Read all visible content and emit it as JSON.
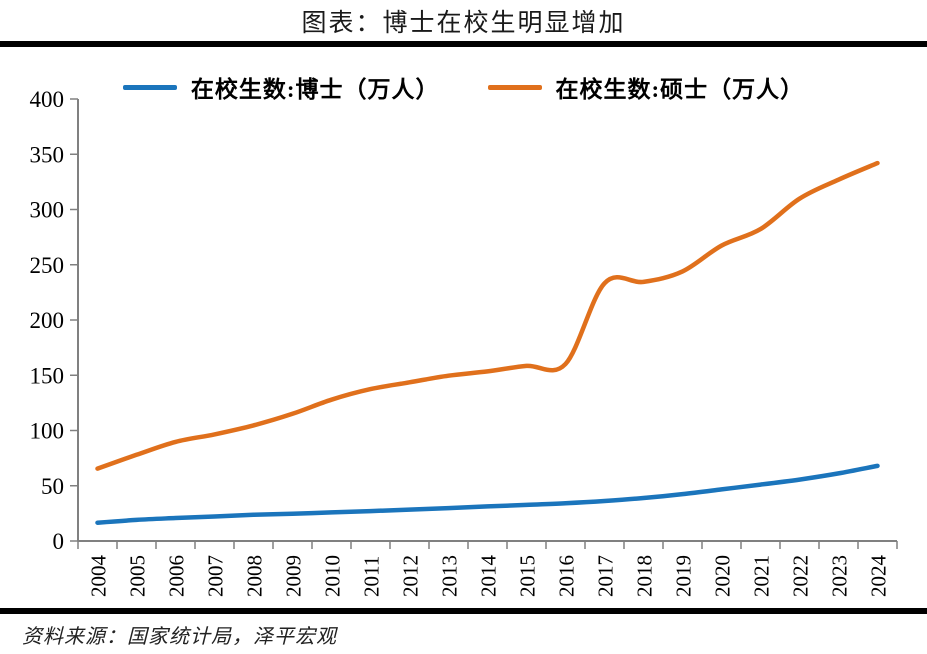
{
  "title": "图表：博士在校生明显增加",
  "source_note": "资料来源：国家统计局，泽平宏观",
  "colors": {
    "doctor": "#1B75BC",
    "master": "#E0701C",
    "axis": "#808080",
    "text": "#000000",
    "divider": "#000000"
  },
  "chart_data": {
    "type": "line",
    "smooth": true,
    "title": "图表：博士在校生明显增加",
    "categories": [
      "2004",
      "2005",
      "2006",
      "2007",
      "2008",
      "2009",
      "2010",
      "2011",
      "2012",
      "2013",
      "2014",
      "2015",
      "2016",
      "2017",
      "2018",
      "2019",
      "2020",
      "2021",
      "2022",
      "2023",
      "2024"
    ],
    "series": [
      {
        "name": "在校生数:博士（万人）",
        "key": "doctor",
        "values": [
          16.6,
          19.1,
          20.8,
          22.2,
          23.7,
          24.6,
          25.9,
          27.1,
          28.4,
          29.8,
          31.3,
          32.7,
          34.2,
          36.2,
          38.9,
          42.4,
          46.7,
          51.0,
          55.6,
          61.2,
          68.0
        ]
      },
      {
        "name": "在校生数:硕士（万人）",
        "key": "master",
        "values": [
          65.5,
          78.0,
          89.7,
          96.5,
          104.6,
          115.1,
          127.9,
          137.5,
          143.6,
          149.6,
          153.5,
          158.5,
          160.2,
          233.2,
          234.5,
          244.0,
          267.3,
          282.3,
          309.8,
          327.0,
          342.0
        ]
      }
    ],
    "xlabel": "",
    "ylabel": "",
    "ylim": [
      0,
      400
    ],
    "ytick_step": 50,
    "yticks": [
      0,
      50,
      100,
      150,
      200,
      250,
      300,
      350,
      400
    ],
    "legend_position": "top",
    "grid": false
  }
}
